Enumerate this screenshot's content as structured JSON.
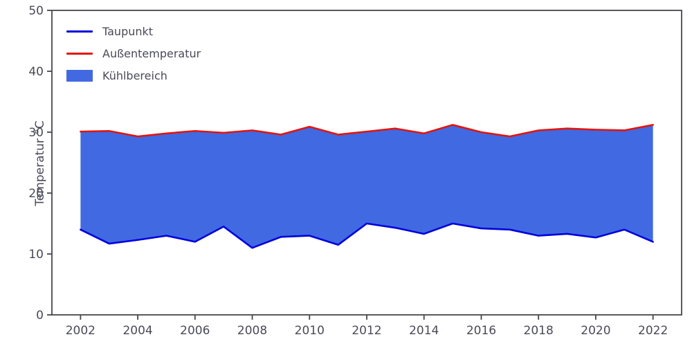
{
  "chart_data": {
    "type": "area",
    "title": "",
    "xlabel": "",
    "ylabel": "Temperatur °C",
    "xlim": [
      2001,
      2023
    ],
    "ylim": [
      0,
      50
    ],
    "yticks": [
      0,
      10,
      20,
      30,
      40,
      50
    ],
    "xticks": [
      2002,
      2004,
      2006,
      2008,
      2010,
      2012,
      2014,
      2016,
      2018,
      2020,
      2022
    ],
    "x": [
      2002,
      2003,
      2004,
      2005,
      2006,
      2007,
      2008,
      2009,
      2010,
      2011,
      2012,
      2013,
      2014,
      2015,
      2016,
      2017,
      2018,
      2019,
      2020,
      2021,
      2022
    ],
    "series": [
      {
        "name": "Taupunkt",
        "color": "#0000dd",
        "values": [
          14.0,
          11.7,
          12.3,
          13.0,
          12.0,
          14.5,
          11.0,
          12.8,
          13.0,
          11.5,
          15.0,
          14.3,
          13.3,
          15.0,
          14.2,
          14.0,
          13.0,
          13.3,
          12.7,
          14.0,
          12.0
        ]
      },
      {
        "name": "Außentemperatur",
        "color": "#e3140c",
        "values": [
          30.1,
          30.2,
          29.3,
          29.8,
          30.2,
          29.9,
          30.3,
          29.6,
          30.9,
          29.6,
          30.1,
          30.6,
          29.8,
          31.2,
          30.0,
          29.3,
          30.3,
          30.6,
          30.4,
          30.3,
          31.2
        ]
      }
    ],
    "fill": {
      "name": "Kühlbereich",
      "color": "#4169e1",
      "between": [
        "Taupunkt",
        "Außentemperatur"
      ]
    },
    "legend": {
      "position": "upper-left",
      "entries": [
        {
          "label": "Taupunkt",
          "type": "line",
          "color": "#0000dd"
        },
        {
          "label": "Außentemperatur",
          "type": "line",
          "color": "#e3140c"
        },
        {
          "label": "Kühlbereich",
          "type": "patch",
          "color": "#4169e1"
        }
      ]
    },
    "axis_color": "#45454f",
    "text_color": "#4a4a58",
    "grid": false
  }
}
